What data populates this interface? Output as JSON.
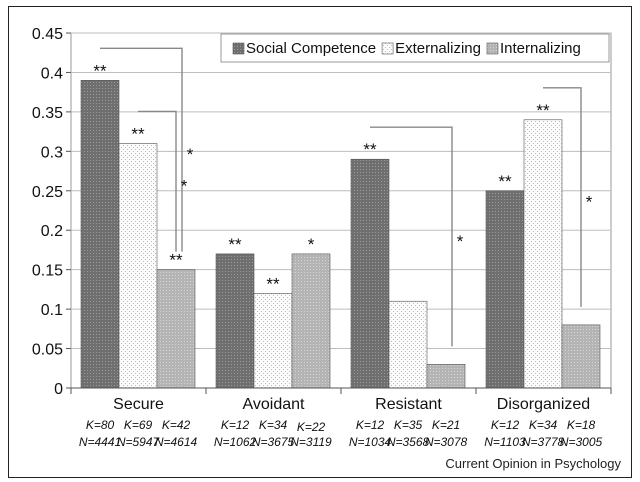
{
  "chart_data": {
    "type": "bar",
    "categories": [
      "Secure",
      "Avoidant",
      "Resistant",
      "Disorganized"
    ],
    "series": [
      {
        "name": "Social Competence",
        "color": "#7a7a7a",
        "values": [
          0.39,
          0.17,
          0.29,
          0.25
        ],
        "k": [
          "K=80",
          "K=12",
          "K=12",
          "K=12"
        ],
        "n": [
          "N=4441",
          "N=1062",
          "N=1034",
          "N=1103"
        ]
      },
      {
        "name": "Externalizing",
        "color": "#f2f2f2",
        "values": [
          0.31,
          0.12,
          0.11,
          0.34
        ],
        "k": [
          "K=69",
          "K=34",
          "K=35",
          "K=34"
        ],
        "n": [
          "N=5947",
          "N=3675",
          "N=3568",
          "N=3778"
        ]
      },
      {
        "name": "Internalizing",
        "color": "#b9b9b9",
        "values": [
          0.15,
          0.17,
          0.03,
          0.08
        ],
        "k": [
          "K=42",
          "K=22",
          "K=21",
          "K=18"
        ],
        "n": [
          "N=4614",
          "N=3119",
          "N=3078",
          "N=3005"
        ]
      }
    ],
    "bar_stars": [
      [
        "**",
        "**",
        "**"
      ],
      [
        "**",
        "**",
        "*"
      ],
      [
        "**",
        "",
        ""
      ],
      [
        "**",
        "**",
        ""
      ]
    ],
    "brackets": [
      {
        "category": 0,
        "from": 0,
        "to": 2,
        "star": "*"
      },
      {
        "category": 0,
        "from": 1,
        "to": 2,
        "star": "*"
      },
      {
        "category": 2,
        "from": 0,
        "to": 2,
        "star": "*"
      },
      {
        "category": 3,
        "from": 1,
        "to": 2,
        "star": "*"
      }
    ],
    "y_ticks": [
      "0",
      "0.05",
      "0.1",
      "0.15",
      "0.2",
      "0.25",
      "0.3",
      "0.35",
      "0.4",
      "0.45"
    ],
    "ylim": [
      0,
      0.45
    ],
    "grid": true,
    "legend_position": "top-right"
  },
  "caption": "Current Opinion in Psychology"
}
